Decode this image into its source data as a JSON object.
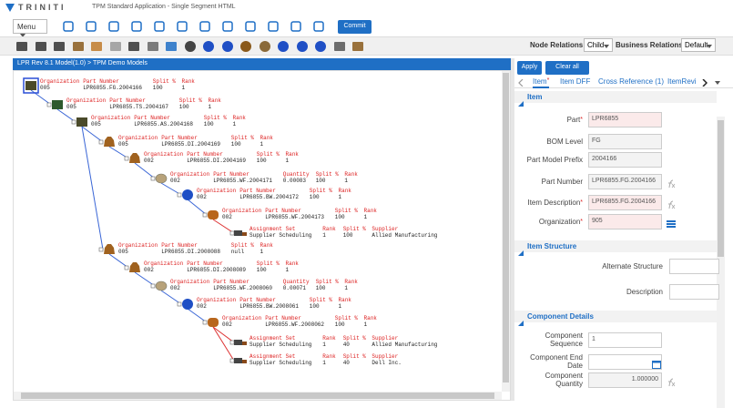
{
  "header": {
    "brand": "TRINITI",
    "title": "TPM Standard Application - Single Segment HTML"
  },
  "toolbar": {
    "menu": "Menu",
    "commit": "Commit"
  },
  "relations": {
    "node_label": "Node Relations",
    "node_value": "Child",
    "business_label": "Business Relations",
    "business_value": "Default"
  },
  "tree": {
    "breadcrumb": "LPR Rev 8.1 Model(1.0) > TPM Demo Models",
    "nodes": [
      {
        "fields": [
          {
            "label": "Organization",
            "value": "005"
          },
          {
            "label": "Part Number",
            "value": "LPR6855.FG.2004166"
          },
          {
            "label": "Split %",
            "value": "100"
          },
          {
            "label": "Rank",
            "value": "1"
          }
        ]
      },
      {
        "fields": [
          {
            "label": "Organization",
            "value": "005"
          },
          {
            "label": "Part Number",
            "value": "LPR6855.TS.2004167"
          },
          {
            "label": "Split %",
            "value": "100"
          },
          {
            "label": "Rank",
            "value": "1"
          }
        ]
      },
      {
        "fields": [
          {
            "label": "Organization",
            "value": "005"
          },
          {
            "label": "Part Number",
            "value": "LPR6855.AS.2004168"
          },
          {
            "label": "Split %",
            "value": "100"
          },
          {
            "label": "Rank",
            "value": "1"
          }
        ]
      },
      {
        "fields": [
          {
            "label": "Organization",
            "value": "005"
          },
          {
            "label": "Part Number",
            "value": "LPR6855.DI.2004169"
          },
          {
            "label": "Split %",
            "value": "100"
          },
          {
            "label": "Rank",
            "value": "1"
          }
        ]
      },
      {
        "fields": [
          {
            "label": "Organization",
            "value": "002"
          },
          {
            "label": "Part Number",
            "value": "LPR6855.DI.2004169"
          },
          {
            "label": "Split %",
            "value": "100"
          },
          {
            "label": "Rank",
            "value": "1"
          }
        ]
      },
      {
        "fields": [
          {
            "label": "Organization",
            "value": "002"
          },
          {
            "label": "Part Number",
            "value": "LPR6855.WF.2004171"
          },
          {
            "label": "Quantity",
            "value": "0.00083"
          },
          {
            "label": "Split %",
            "value": "100"
          },
          {
            "label": "Rank",
            "value": "1"
          }
        ]
      },
      {
        "fields": [
          {
            "label": "Organization",
            "value": "002"
          },
          {
            "label": "Part Number",
            "value": "LPR6855.BW.2004172"
          },
          {
            "label": "Split %",
            "value": "100"
          },
          {
            "label": "Rank",
            "value": "1"
          }
        ]
      },
      {
        "fields": [
          {
            "label": "Organization",
            "value": "002"
          },
          {
            "label": "Part Number",
            "value": "LPR6855.WF.2004173"
          },
          {
            "label": "Split %",
            "value": "100"
          },
          {
            "label": "Rank",
            "value": "1"
          }
        ]
      },
      {
        "fields": [
          {
            "label": "Assignment Set",
            "value": "Supplier Scheduling"
          },
          {
            "label": "Rank",
            "value": "1"
          },
          {
            "label": "Split %",
            "value": "100"
          },
          {
            "label": "Supplier",
            "value": "Allied Manufacturing"
          }
        ]
      },
      {
        "fields": [
          {
            "label": "Organization",
            "value": "005"
          },
          {
            "label": "Part Number",
            "value": "LPR6855.DI.2008088"
          },
          {
            "label": "Split %",
            "value": "null"
          },
          {
            "label": "Rank",
            "value": "1"
          }
        ]
      },
      {
        "fields": [
          {
            "label": "Organization",
            "value": "002"
          },
          {
            "label": "Part Number",
            "value": "LPR6855.DI.2008089"
          },
          {
            "label": "Split %",
            "value": "100"
          },
          {
            "label": "Rank",
            "value": "1"
          }
        ]
      },
      {
        "fields": [
          {
            "label": "Organization",
            "value": "002"
          },
          {
            "label": "Part Number",
            "value": "LPR6855.WF.2008060"
          },
          {
            "label": "Quantity",
            "value": "0.00071"
          },
          {
            "label": "Split %",
            "value": "100"
          },
          {
            "label": "Rank",
            "value": "1"
          }
        ]
      },
      {
        "fields": [
          {
            "label": "Organization",
            "value": "002"
          },
          {
            "label": "Part Number",
            "value": "LPR6855.BW.2008061"
          },
          {
            "label": "Split %",
            "value": "100"
          },
          {
            "label": "Rank",
            "value": "1"
          }
        ]
      },
      {
        "fields": [
          {
            "label": "Organization",
            "value": "002"
          },
          {
            "label": "Part Number",
            "value": "LPR6855.WF.2008062"
          },
          {
            "label": "Split %",
            "value": "100"
          },
          {
            "label": "Rank",
            "value": "1"
          }
        ]
      },
      {
        "fields": [
          {
            "label": "Assignment Set",
            "value": "Supplier Scheduling"
          },
          {
            "label": "Rank",
            "value": "1"
          },
          {
            "label": "Split %",
            "value": "40"
          },
          {
            "label": "Supplier",
            "value": "Allied Manufacturing"
          }
        ]
      },
      {
        "fields": [
          {
            "label": "Assignment Set",
            "value": "Supplier Scheduling"
          },
          {
            "label": "Rank",
            "value": "1"
          },
          {
            "label": "Split %",
            "value": "40"
          },
          {
            "label": "Supplier",
            "value": "Dell Inc."
          }
        ]
      }
    ]
  },
  "form": {
    "apply": "Apply",
    "clear": "Clear all",
    "required_mark": "*",
    "tabs": [
      "Item",
      "Item DFF",
      "Cross Reference (1)",
      "ItemRevi"
    ],
    "sections": [
      {
        "title": "Item",
        "fields": [
          {
            "label": "Part",
            "value": "LPR6855",
            "required": true
          },
          {
            "label": "BOM Level",
            "value": "FG",
            "disabled": true
          },
          {
            "label": "Part Model Prefix",
            "value": "2004166",
            "disabled": true
          },
          {
            "label": "Part Number",
            "value": "LPR6855.FG.2004166",
            "disabled": true
          },
          {
            "label": "Item Description",
            "value": "LPR6855.FG.2004166",
            "required": true
          },
          {
            "label": "Organization",
            "value": "905",
            "required": true
          }
        ]
      },
      {
        "title": "Item Structure",
        "fields": [
          {
            "label": "Alternate Structure"
          },
          {
            "label": "Description"
          }
        ]
      },
      {
        "title": "Component Details",
        "fields": [
          {
            "label": "Component Sequence",
            "value": "1"
          },
          {
            "label": "Component End Date"
          },
          {
            "label": "Component Quantity",
            "value": "1.000000",
            "disabled": true
          }
        ]
      }
    ]
  }
}
